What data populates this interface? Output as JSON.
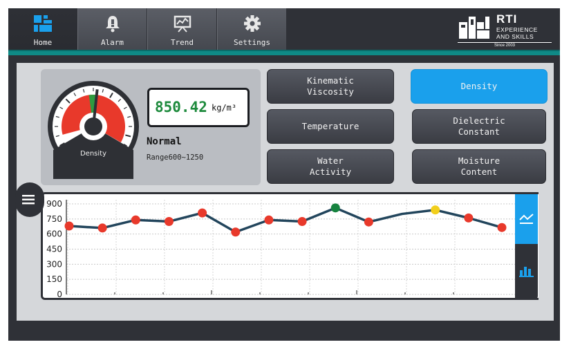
{
  "nav": {
    "items": [
      {
        "label": "Home",
        "icon": "home-grid-icon"
      },
      {
        "label": "Alarm",
        "icon": "bell-icon"
      },
      {
        "label": "Trend",
        "icon": "trend-board-icon"
      },
      {
        "label": "Settings",
        "icon": "gear-icon"
      }
    ],
    "active": "Home"
  },
  "logo": {
    "brand": "RTI",
    "line2": "EXPERIENCE",
    "line3": "AND SKILLS",
    "since": "Since 2003"
  },
  "gauge": {
    "label": "Density",
    "value": "850.42",
    "unit": "kg/m³",
    "status": "Normal",
    "range": "Range600~1250",
    "needle_fraction": 0.42
  },
  "params": [
    {
      "label": "Kinematic\nViscosity",
      "active": false
    },
    {
      "label": "Density",
      "active": true
    },
    {
      "label": "Temperature",
      "active": false
    },
    {
      "label": "Dielectric\nConstant",
      "active": false
    },
    {
      "label": "Water\nActivity",
      "active": false
    },
    {
      "label": "Moisture\nContent",
      "active": false
    }
  ],
  "colors": {
    "accent": "#1aa0ec",
    "teal": "#0f8a86",
    "normal_point": "#e8392b",
    "high_point": "#17833f",
    "warn_point": "#f2cf1c",
    "line": "#22455c"
  },
  "chart_data": {
    "type": "line",
    "ylim": [
      0,
      900
    ],
    "yticks": [
      0,
      150,
      300,
      450,
      600,
      750,
      900
    ],
    "grid": true,
    "series": [
      {
        "values": [
          680,
          660,
          740,
          725,
          810,
          620,
          740,
          725,
          860,
          720,
          800,
          840,
          760,
          665
        ],
        "status": [
          "normal",
          "normal",
          "normal",
          "normal",
          "normal",
          "normal",
          "normal",
          "normal",
          "high",
          "normal",
          "none",
          "warn",
          "normal",
          "normal"
        ]
      }
    ]
  },
  "sidebar": {
    "menu_icon": "hamburger-icon",
    "chart_line_icon": "line-chart-icon",
    "chart_bar_icon": "bar-chart-icon"
  }
}
